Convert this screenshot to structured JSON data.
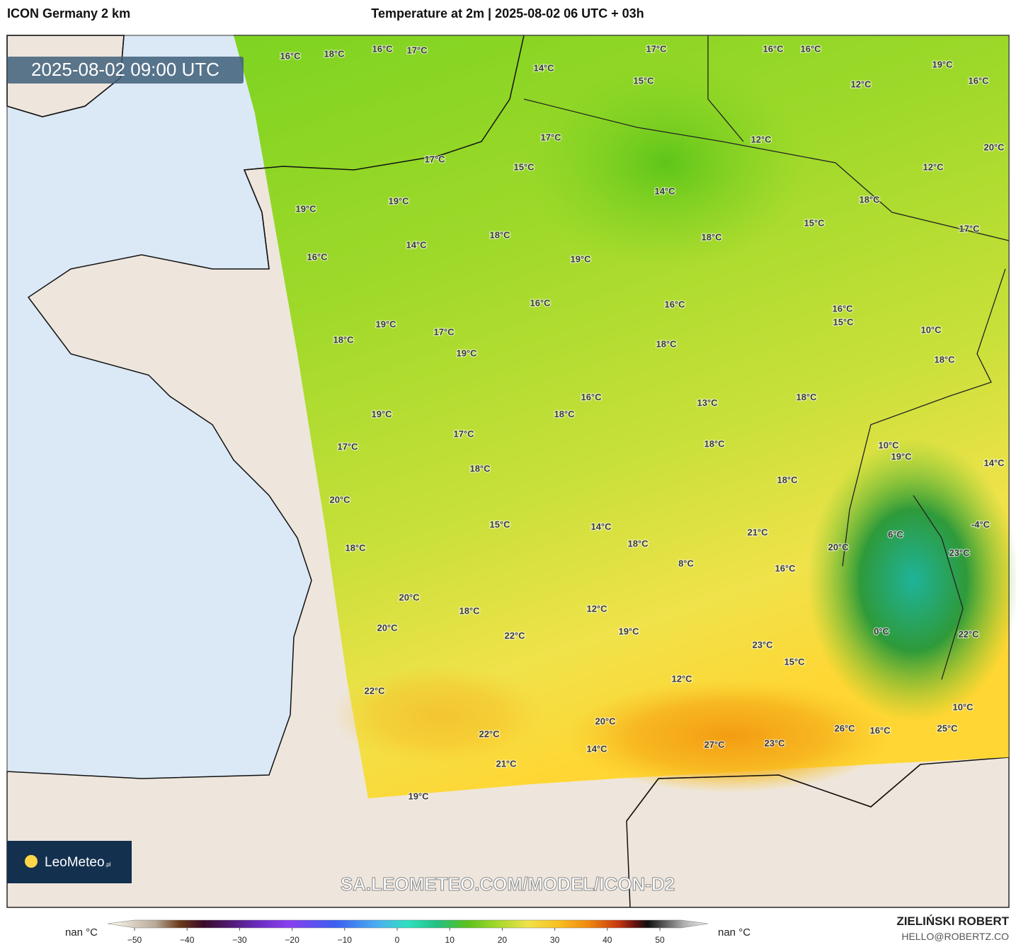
{
  "header": {
    "title_left": "ICON Germany 2 km",
    "title_center": "Temperature at 2m | 2025-08-02 06 UTC + 03h"
  },
  "timestamp": "2025-08-02 09:00 UTC",
  "watermark": "SA.LEOMETEO.COM/MODEL/ICON-D2",
  "logo": {
    "brand": "LeoMeteo",
    "suffix": ".pl"
  },
  "map_labels": [
    "16°C",
    "18°C",
    "16°C",
    "17°C",
    "17°C",
    "16°C",
    "16°C",
    "19°C",
    "14°C",
    "15°C",
    "12°C",
    "16°C",
    "17°C",
    "12°C",
    "20°C",
    "17°C",
    "15°C",
    "12°C",
    "14°C",
    "19°C",
    "18°C",
    "19°C",
    "15°C",
    "17°C",
    "18°C",
    "18°C",
    "14°C",
    "19°C",
    "16°C",
    "16°C",
    "16°C",
    "16°C",
    "15°C",
    "19°C",
    "17°C",
    "10°C",
    "18°C",
    "18°C",
    "19°C",
    "18°C",
    "16°C",
    "18°C",
    "13°C",
    "19°C",
    "18°C",
    "17°C",
    "18°C",
    "17°C",
    "10°C",
    "19°C",
    "14°C",
    "18°C",
    "18°C",
    "20°C",
    "15°C",
    "14°C",
    "21°C",
    "-4°C",
    "6°C",
    "18°C",
    "18°C",
    "20°C",
    "23°C",
    "8°C",
    "16°C",
    "20°C",
    "12°C",
    "18°C",
    "19°C",
    "20°C",
    "0°C",
    "22°C",
    "22°C",
    "23°C",
    "15°C",
    "12°C",
    "22°C",
    "10°C",
    "20°C",
    "26°C",
    "16°C",
    "25°C",
    "22°C",
    "27°C",
    "23°C",
    "14°C",
    "21°C",
    "19°C"
  ],
  "colorbar": {
    "left_label": "nan °C",
    "right_label": "nan °C",
    "ticks": [
      "−50",
      "−40",
      "−30",
      "−20",
      "−10",
      "0",
      "10",
      "20",
      "30",
      "40",
      "50"
    ]
  },
  "footer": {
    "author": "ZIELIŃSKI ROBERT",
    "email": "HELLO@ROBERTZ.CO"
  }
}
